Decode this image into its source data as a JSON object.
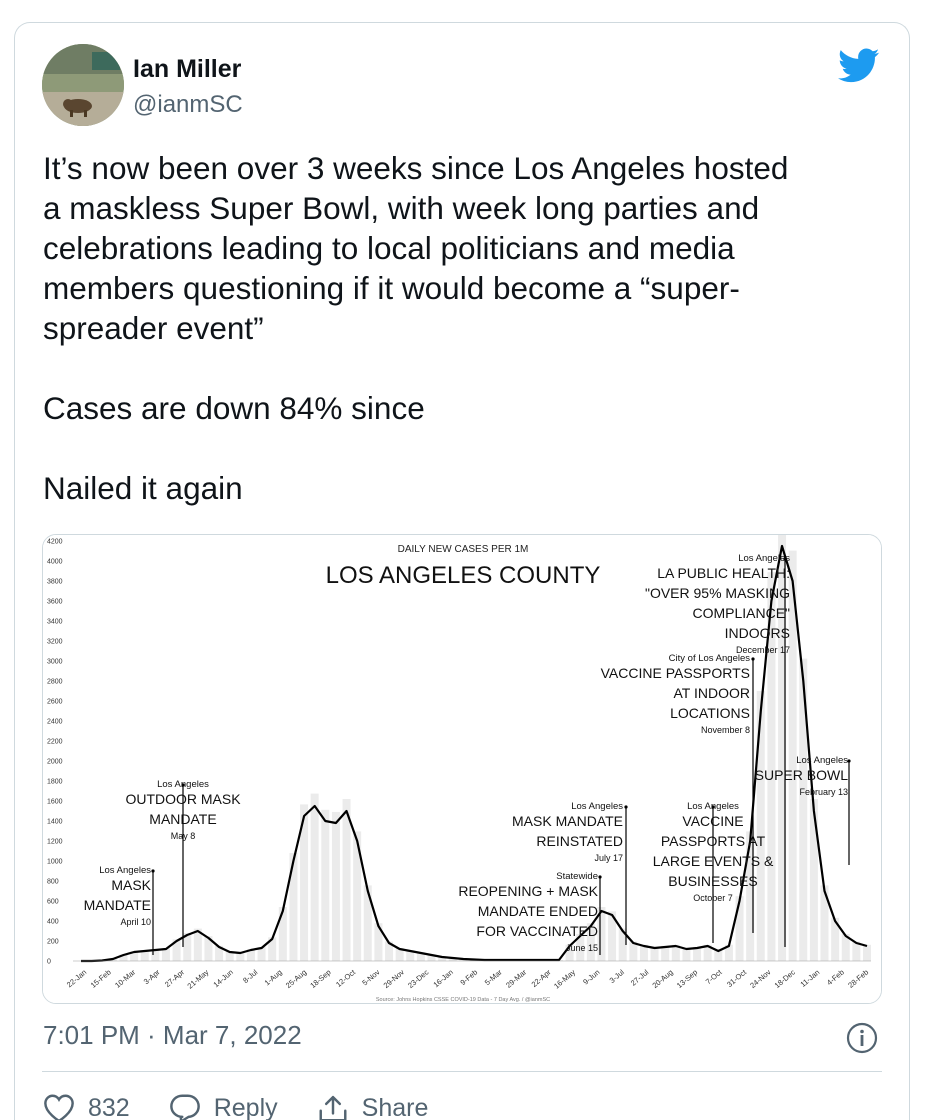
{
  "user": {
    "name": "Ian Miller",
    "handle": "@ianmSC"
  },
  "tweet": {
    "text": "It’s now been over 3 weeks since Los Angeles hosted\na maskless Super Bowl, with week long parties and\ncelebrations leading to local politicians and media\nmembers questioning if it would become a “super-\nspreader event”\n\nCases are down 84% since\n\nNailed it again",
    "timestamp": "7:01 PM · Mar 7, 2022"
  },
  "actions": {
    "like_count": "832",
    "reply_label": "Reply",
    "share_label": "Share"
  },
  "colors": {
    "twitter_blue": "#1d9bf0",
    "secondary_text": "#536471",
    "border": "#cfd9de"
  },
  "chart_data": {
    "type": "line",
    "title": "LOS ANGELES COUNTY",
    "subtitle": "DAILY NEW CASES PER 1M",
    "source": "Source: Johns Hopkins CSSE COVID-19 Data - 7 Day Avg. / @ianmSC",
    "ylim": [
      0,
      4200
    ],
    "yticks": [
      0,
      200,
      400,
      600,
      800,
      1000,
      1200,
      1400,
      1600,
      1800,
      2000,
      2200,
      2400,
      2600,
      2800,
      3000,
      3200,
      3400,
      3600,
      3800,
      4000,
      4200
    ],
    "xticks": [
      "22-Jan",
      "15-Feb",
      "10-Mar",
      "3-Apr",
      "27-Apr",
      "21-May",
      "14-Jun",
      "8-Jul",
      "1-Aug",
      "25-Aug",
      "18-Sep",
      "12-Oct",
      "5-Nov",
      "29-Nov",
      "23-Dec",
      "16-Jan",
      "9-Feb",
      "5-Mar",
      "29-Mar",
      "22-Apr",
      "16-May",
      "9-Jun",
      "3-Jul",
      "27-Jul",
      "20-Aug",
      "13-Sep",
      "7-Oct",
      "31-Oct",
      "24-Nov",
      "18-Dec",
      "11-Jan",
      "4-Feb",
      "28-Feb"
    ],
    "series": [
      {
        "values": [
          0,
          0,
          5,
          20,
          60,
          90,
          100,
          110,
          120,
          200,
          260,
          300,
          230,
          140,
          90,
          80,
          110,
          130,
          220,
          500,
          1000,
          1450,
          1550,
          1400,
          1380,
          1500,
          1200,
          700,
          350,
          180,
          120,
          100,
          80,
          60,
          40,
          30,
          20,
          15,
          10,
          10,
          10,
          10,
          10,
          10,
          10,
          10,
          150,
          250,
          350,
          500,
          460,
          300,
          180,
          150,
          130,
          140,
          150,
          120,
          130,
          150,
          100,
          150,
          600,
          1200,
          2500,
          3600,
          4150,
          3800,
          2800,
          1500,
          700,
          400,
          250,
          180,
          150
        ]
      }
    ],
    "annotations": [
      {
        "place": "Los Angeles",
        "lines": [
          "MASK",
          "MANDATE"
        ],
        "date": "April 10"
      },
      {
        "place": "Los Angeles",
        "lines": [
          "OUTDOOR MASK",
          "MANDATE"
        ],
        "date": "May 8"
      },
      {
        "place": "Statewide",
        "lines": [
          "REOPENING + MASK",
          "MANDATE ENDED",
          "FOR VACCINATED"
        ],
        "date": "June 15"
      },
      {
        "place": "Los Angeles",
        "lines": [
          "MASK MANDATE",
          "REINSTATED"
        ],
        "date": "July 17"
      },
      {
        "place": "Los Angeles",
        "lines": [
          "VACCINE",
          "PASSPORTS AT",
          "LARGE EVENTS &",
          "BUSINESSES"
        ],
        "date": "October 7"
      },
      {
        "place": "City of Los Angeles",
        "lines": [
          "VACCINE PASSPORTS",
          "AT INDOOR",
          "LOCATIONS"
        ],
        "date": "November 8"
      },
      {
        "place": "Los Angeles",
        "lines": [
          "LA PUBLIC HEALTH:",
          "\"OVER 95% MASKING",
          "COMPLIANCE\"",
          "INDOORS"
        ],
        "date": "December 17"
      },
      {
        "place": "Los Angeles",
        "lines": [
          "SUPER BOWL"
        ],
        "date": "February 13"
      }
    ]
  }
}
